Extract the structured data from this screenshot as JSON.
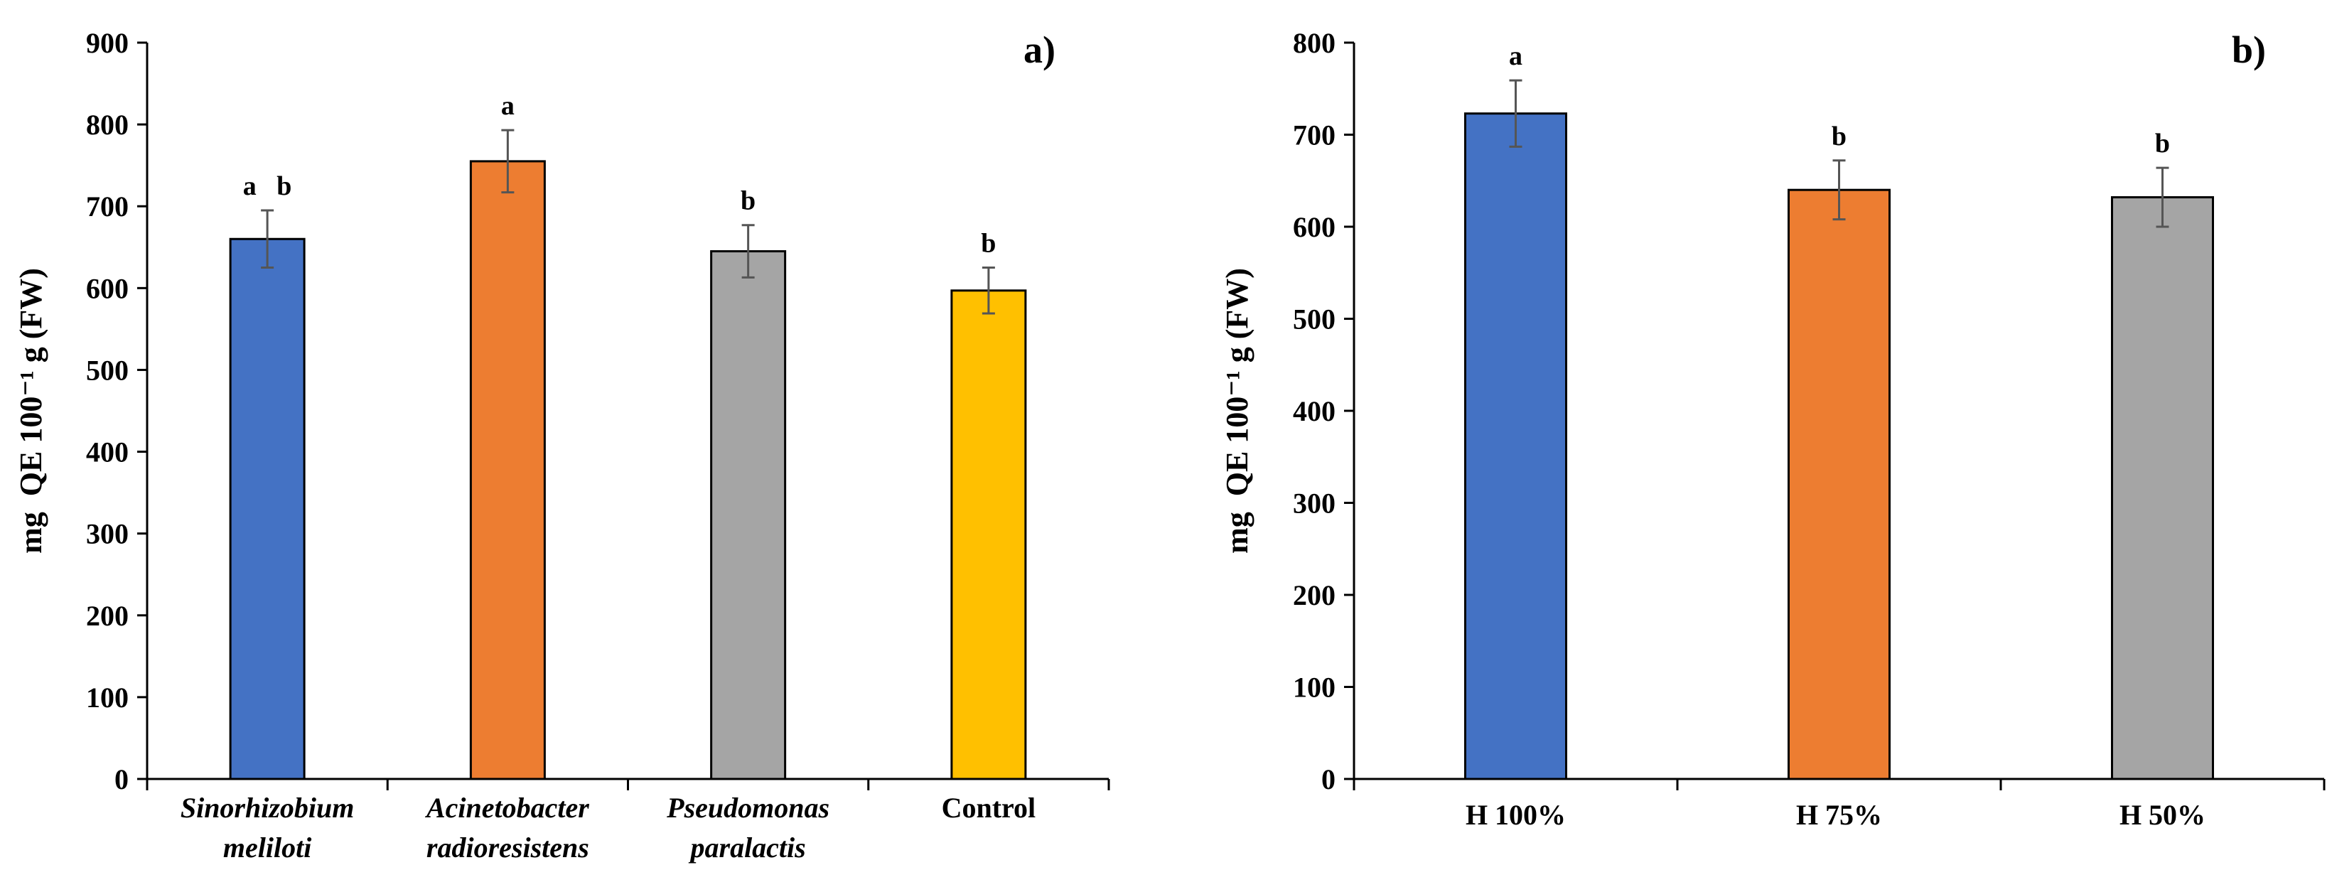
{
  "chart_data": [
    {
      "type": "bar",
      "panel_label": "a)",
      "ylabel": "mg  QE 100⁻¹ g (FW)",
      "xlabel": "",
      "ylim": [
        0,
        900
      ],
      "yticks": [
        0,
        100,
        200,
        300,
        400,
        500,
        600,
        700,
        800,
        900
      ],
      "grid": false,
      "categories": [
        {
          "lines": [
            "Sinorhizobium",
            "meliloti"
          ],
          "italic": true
        },
        {
          "lines": [
            "Acinetobacter",
            "radioresistens"
          ],
          "italic": true
        },
        {
          "lines": [
            "Pseudomonas",
            "paralactis"
          ],
          "italic": true
        },
        {
          "lines": [
            "Control"
          ],
          "italic": false
        }
      ],
      "values": [
        660,
        755,
        645,
        597
      ],
      "errors": [
        35,
        38,
        32,
        28
      ],
      "colors": [
        "#4472C4",
        "#ED7D31",
        "#A5A5A5",
        "#FFC000"
      ],
      "significance": [
        "a   b",
        "a",
        "b",
        "b"
      ]
    },
    {
      "type": "bar",
      "panel_label": "b)",
      "ylabel": "mg  QE 100⁻¹ g (FW)",
      "xlabel": "",
      "ylim": [
        0,
        800
      ],
      "yticks": [
        0,
        100,
        200,
        300,
        400,
        500,
        600,
        700,
        800
      ],
      "grid": false,
      "categories": [
        {
          "lines": [
            "H 100%"
          ],
          "italic": false
        },
        {
          "lines": [
            "H 75%"
          ],
          "italic": false
        },
        {
          "lines": [
            "H 50%"
          ],
          "italic": false
        }
      ],
      "values": [
        723,
        640,
        632
      ],
      "errors": [
        36,
        32,
        32
      ],
      "colors": [
        "#4472C4",
        "#ED7D31",
        "#A5A5A5"
      ],
      "significance": [
        "a",
        "b",
        "b"
      ]
    }
  ]
}
